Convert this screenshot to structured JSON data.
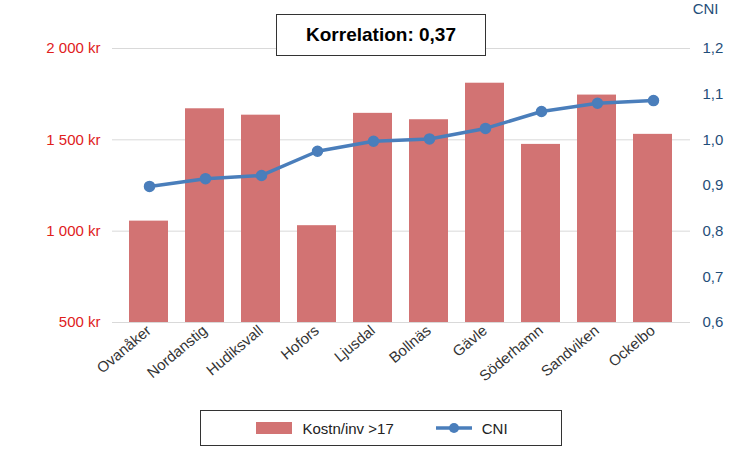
{
  "chart_data": {
    "type": "bar",
    "annotations": [
      "Korrelation: 0,37"
    ],
    "categories": [
      "Ovanåker",
      "Nordanstig",
      "Hudiksvall",
      "Hofors",
      "Ljusdal",
      "Bollnäs",
      "Gävle",
      "Söderhamn",
      "Sandviken",
      "Ockelbo"
    ],
    "series": [
      {
        "name": "Kostn/inv >17",
        "type": "bar",
        "color": "#d27373",
        "values": [
          1055,
          1670,
          1635,
          1030,
          1645,
          1610,
          1810,
          1475,
          1745,
          1530
        ]
      },
      {
        "name": "CNI",
        "type": "line",
        "axis": "y2",
        "marker": "circle",
        "color": "#4a7ebb",
        "values": [
          0.898,
          0.915,
          0.922,
          0.975,
          0.997,
          1.002,
          1.025,
          1.062,
          1.08,
          1.086
        ]
      }
    ],
    "ylim": [
      500,
      2000
    ],
    "yticks": [
      {
        "value": 500,
        "label": "500 kr"
      },
      {
        "value": 1000,
        "label": "1 000 kr"
      },
      {
        "value": 1500,
        "label": "1 500 kr"
      },
      {
        "value": 2000,
        "label": "2 000 kr"
      }
    ],
    "y2label": "CNI",
    "y2lim": [
      0.6,
      1.2
    ],
    "y2ticks": [
      {
        "value": 0.6,
        "label": "0,6"
      },
      {
        "value": 0.7,
        "label": "0,7"
      },
      {
        "value": 0.8,
        "label": "0,8"
      },
      {
        "value": 0.9,
        "label": "0,9"
      },
      {
        "value": 1.0,
        "label": "1,0"
      },
      {
        "value": 1.1,
        "label": "1,1"
      },
      {
        "value": 1.2,
        "label": "1,2"
      }
    ],
    "grid": true,
    "legend": "bottom"
  }
}
